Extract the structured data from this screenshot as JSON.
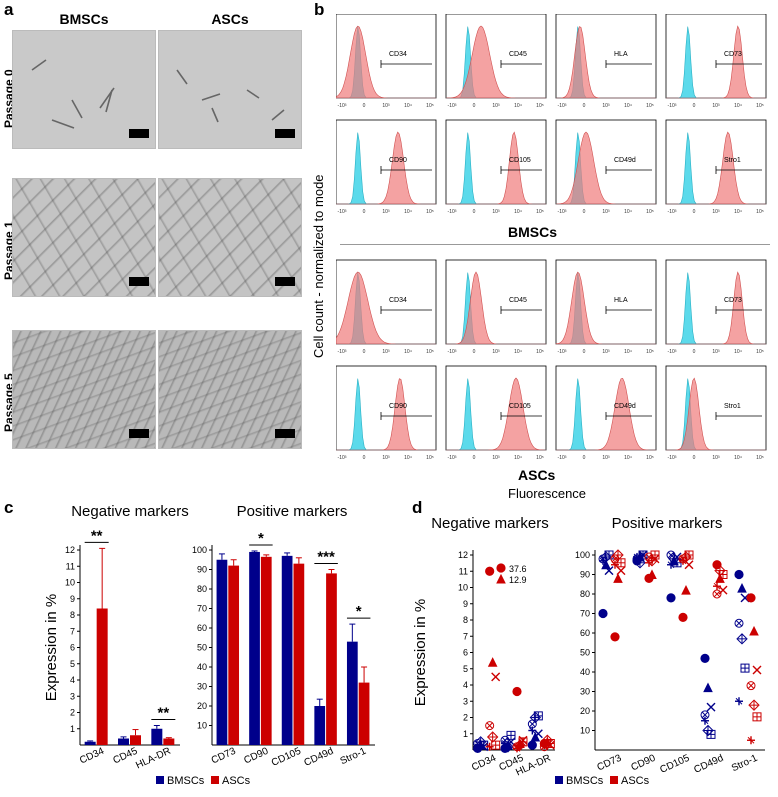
{
  "panels": {
    "a": "a",
    "b": "b",
    "c": "c",
    "d": "d"
  },
  "panel_a": {
    "columns": [
      "BMSCs",
      "ASCs"
    ],
    "rows": [
      "Passage 0",
      "Passage 1",
      "Passage 5"
    ]
  },
  "panel_b": {
    "ylabel": "Cell count - normalized to mode",
    "xlabel": "Fluorescence",
    "groups": [
      "BMSCs",
      "ASCs"
    ],
    "bmsc_markers": [
      "CD34",
      "CD45",
      "HLA",
      "CD73",
      "CD90",
      "CD105",
      "CD49d",
      "Stro1"
    ],
    "asc_markers": [
      "CD34",
      "CD45",
      "HLA",
      "CD73",
      "CD90",
      "CD105",
      "CD49d",
      "Stro1"
    ],
    "axis_ticks": [
      "-10³",
      "0",
      "10³",
      "10⁴",
      "10⁵"
    ],
    "colors": {
      "isotype": "#3fd3e8",
      "stained": "#f07a7a"
    }
  },
  "chart_data": [
    {
      "type": "bar",
      "title": "Negative markers",
      "ylabel": "Expression in %",
      "categories": [
        "CD34",
        "CD45",
        "HLA-DR"
      ],
      "series": [
        {
          "name": "BMSCs",
          "values": [
            0.2,
            0.4,
            1.0
          ],
          "errors": [
            0.05,
            0.1,
            0.2
          ]
        },
        {
          "name": "ASCs",
          "values": [
            8.4,
            0.6,
            0.4
          ],
          "errors": [
            3.7,
            0.35,
            0.05
          ]
        }
      ],
      "ylim": [
        0,
        12
      ],
      "yticks": [
        "1",
        "2",
        "3",
        "4",
        "5",
        "6",
        "7",
        "8",
        "9",
        "10",
        "11",
        "12"
      ],
      "significance": [
        "**",
        "",
        "**"
      ]
    },
    {
      "type": "bar",
      "title": "Positive markers",
      "categories": [
        "CD73",
        "CD90",
        "CD105",
        "CD49d",
        "Stro-1"
      ],
      "series": [
        {
          "name": "BMSCs",
          "values": [
            95,
            99,
            97,
            20,
            53
          ],
          "errors": [
            3,
            0.5,
            1.5,
            3.5,
            9
          ]
        },
        {
          "name": "ASCs",
          "values": [
            92,
            96.5,
            93,
            88,
            32
          ],
          "errors": [
            3,
            1,
            3,
            2,
            8
          ]
        }
      ],
      "ylim": [
        0,
        100
      ],
      "yticks": [
        "10",
        "20",
        "30",
        "40",
        "50",
        "60",
        "70",
        "80",
        "90",
        "100"
      ],
      "significance": [
        "",
        "*",
        "",
        "***",
        "*"
      ]
    },
    {
      "type": "scatter",
      "title_negative": "Negative markers",
      "title_positive": "Positive markers",
      "ylabel": "Expression in %",
      "negative_categories": [
        "CD34",
        "CD45",
        "HLA-DR"
      ],
      "positive_categories": [
        "CD73",
        "CD90",
        "CD105",
        "CD49d",
        "Stro-1"
      ],
      "outlier_labels": [
        "37.6",
        "12.9"
      ],
      "neg_yticks": [
        "1",
        "2",
        "3",
        "4",
        "5",
        "6",
        "7",
        "8",
        "9",
        "10",
        "11",
        "12"
      ],
      "pos_yticks": [
        "10",
        "20",
        "30",
        "40",
        "50",
        "60",
        "70",
        "80",
        "90",
        "100"
      ],
      "series": [
        {
          "name": "BMSCs",
          "negative": [
            [
              0.1,
              0.3,
              0.2,
              0.4,
              0.5,
              0.3,
              0.2
            ],
            [
              0.1,
              0.3,
              0.5,
              0.6,
              0.2,
              0.9,
              0.4
            ],
            [
              0.3,
              0.8,
              1.0,
              1.6,
              2.0,
              2.1,
              1.2
            ]
          ],
          "positive": [
            [
              70,
              95,
              92,
              98,
              99,
              100,
              97
            ],
            [
              97,
              99,
              100,
              98,
              96,
              100,
              99
            ],
            [
              78,
              97,
              99,
              100,
              98,
              96,
              95
            ],
            [
              47,
              32,
              22,
              18,
              10,
              8,
              15
            ],
            [
              90,
              83,
              78,
              65,
              57,
              42,
              25
            ]
          ]
        },
        {
          "name": "ASCs",
          "negative": [
            [
              11,
              5.4,
              4.5,
              1.5,
              0.8,
              0.3,
              0.2
            ],
            [
              3.6,
              0.4,
              0.6,
              0.2,
              0.3,
              0.5,
              0.1
            ],
            [
              0.4,
              0.5,
              0.3,
              0.2,
              0.6,
              0.4,
              0.3
            ]
          ],
          "positive": [
            [
              58,
              88,
              92,
              98,
              100,
              96,
              95
            ],
            [
              88,
              90,
              98,
              99,
              97,
              100,
              96
            ],
            [
              68,
              82,
              95,
              98,
              99,
              100,
              97
            ],
            [
              95,
              88,
              82,
              80,
              92,
              90,
              84
            ],
            [
              78,
              61,
              41,
              33,
              23,
              17,
              5
            ]
          ]
        }
      ]
    }
  ],
  "legend": {
    "bmsc": "BMSCs",
    "asc": "ASCs"
  },
  "colors": {
    "bmsc": "#00008b",
    "asc": "#cc0000"
  }
}
